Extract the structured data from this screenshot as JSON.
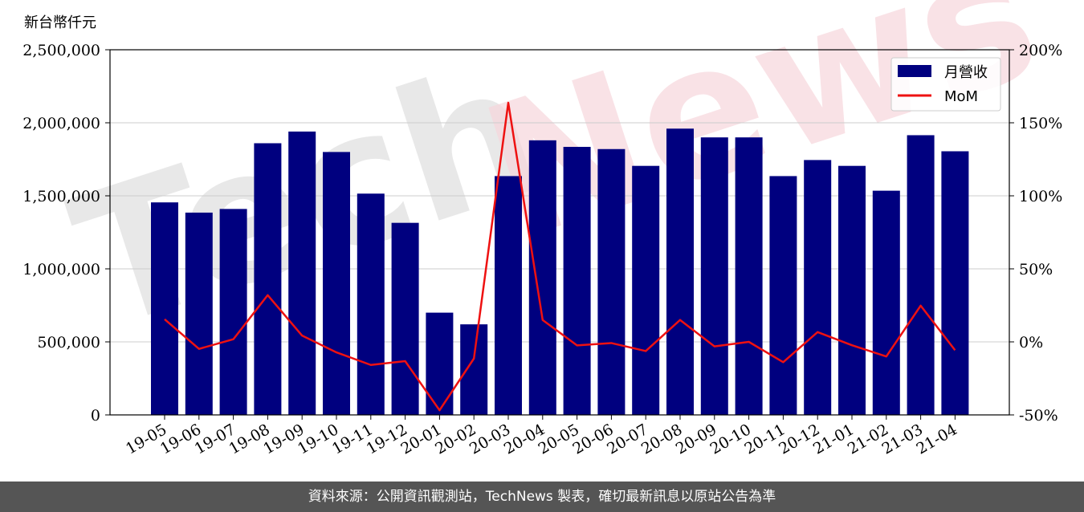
{
  "unit_label": "新台幣仟元",
  "footer": {
    "source_text": "資料來源：公開資訊觀測站，TechNews 製表，確切最新訊息以原站公告為準"
  },
  "watermark": {
    "part1": "Tech",
    "part2": "News"
  },
  "colors": {
    "bar": "#00007f",
    "mom_line": "#ee1111",
    "footer_bg": "#555555",
    "grid": "#cccccc"
  },
  "chart_data": {
    "type": "bar",
    "categories": [
      "19-05",
      "19-06",
      "19-07",
      "19-08",
      "19-09",
      "19-10",
      "19-11",
      "19-12",
      "20-01",
      "20-02",
      "20-03",
      "20-04",
      "20-05",
      "20-06",
      "20-07",
      "20-08",
      "20-09",
      "20-10",
      "20-11",
      "20-12",
      "21-01",
      "21-02",
      "21-03",
      "21-04"
    ],
    "series": [
      {
        "name": "月營收",
        "type": "bar",
        "axis": "left",
        "values": [
          1455000,
          1385000,
          1410000,
          1860000,
          1940000,
          1800000,
          1515000,
          1315000,
          700000,
          620000,
          1635000,
          1880000,
          1835000,
          1820000,
          1705000,
          1960000,
          1900000,
          1900000,
          1635000,
          1745000,
          1705000,
          1535000,
          1915000,
          1805000
        ]
      },
      {
        "name": "MoM",
        "type": "line",
        "axis": "right",
        "values": [
          15.5,
          -4.8,
          1.8,
          32.0,
          4.3,
          -7.2,
          -15.8,
          -13.2,
          -46.8,
          -11.4,
          163.7,
          15.0,
          -2.4,
          -0.8,
          -6.3,
          15.0,
          -3.1,
          0.0,
          -13.9,
          6.7,
          -2.3,
          -10.0,
          24.8,
          -5.7
        ]
      }
    ],
    "y_left": {
      "lim": [
        0,
        2500000
      ],
      "ticks": [
        0,
        500000,
        1000000,
        1500000,
        2000000,
        2500000
      ],
      "tick_labels": [
        "0",
        "500,000",
        "1,000,000",
        "1,500,000",
        "2,000,000",
        "2,500,000"
      ]
    },
    "y_right": {
      "lim": [
        -50,
        200
      ],
      "ticks": [
        -50,
        0,
        50,
        100,
        150,
        200
      ],
      "tick_labels": [
        "-50%",
        "0%",
        "50%",
        "100%",
        "150%",
        "200%"
      ]
    },
    "grid": true,
    "legend_position": "top-right"
  }
}
